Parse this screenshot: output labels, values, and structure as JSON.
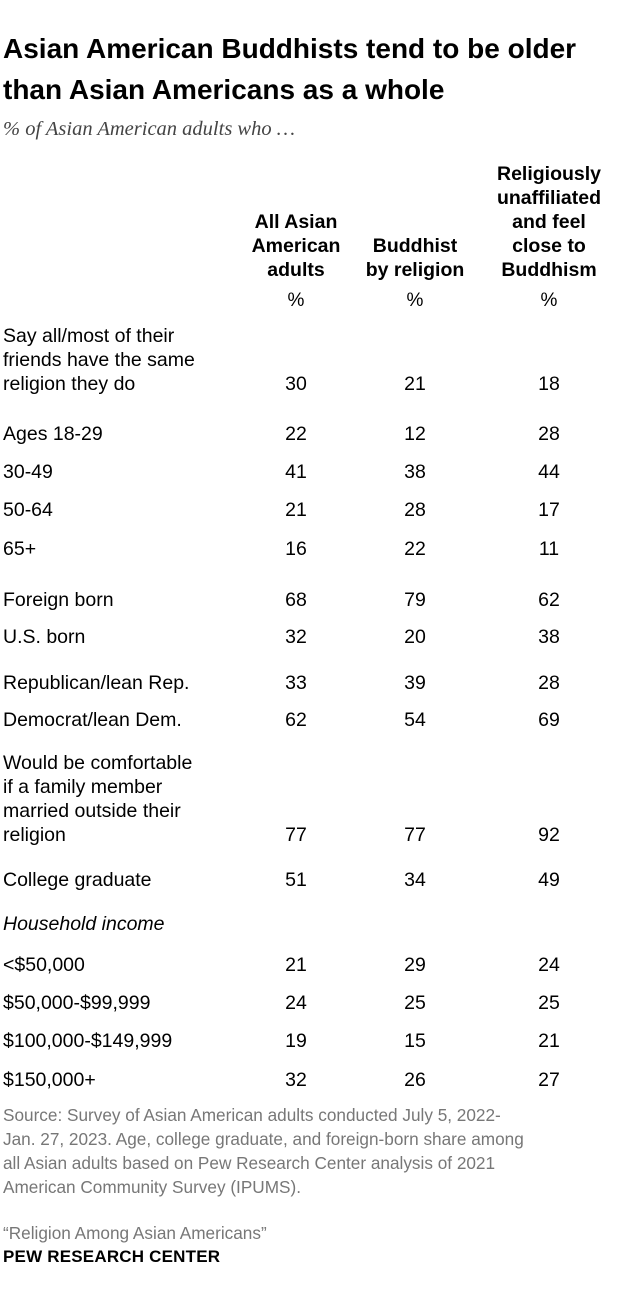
{
  "title": "Asian American Buddhists tend to be older than Asian Americans as a whole",
  "subtitle": "% of Asian American adults who …",
  "chart_data": {
    "type": "table",
    "columns": [
      {
        "name": "All Asian American adults",
        "lines": [
          "All Asian",
          "American",
          "adults"
        ]
      },
      {
        "name": "Buddhist by religion",
        "lines": [
          "Buddhist",
          "by religion"
        ]
      },
      {
        "name": "Religiously unaffiliated and feel close to Buddhism",
        "lines": [
          "Religiously",
          "unaffiliated",
          "and feel",
          "close to",
          "Buddhism"
        ]
      }
    ],
    "unit": "%",
    "section_label": "Household income",
    "rows": [
      {
        "lines": [
          "Say all/most of their",
          "friends have the same",
          "religion they do"
        ],
        "values": [
          30,
          21,
          18
        ]
      },
      {
        "lines": [
          "Ages 18-29"
        ],
        "values": [
          22,
          12,
          28
        ]
      },
      {
        "lines": [
          "30-49"
        ],
        "values": [
          41,
          38,
          44
        ]
      },
      {
        "lines": [
          "50-64"
        ],
        "values": [
          21,
          28,
          17
        ]
      },
      {
        "lines": [
          "65+"
        ],
        "values": [
          16,
          22,
          11
        ]
      },
      {
        "lines": [
          "Foreign born"
        ],
        "values": [
          68,
          79,
          62
        ]
      },
      {
        "lines": [
          "U.S. born"
        ],
        "values": [
          32,
          20,
          38
        ]
      },
      {
        "lines": [
          "Republican/lean Rep."
        ],
        "values": [
          33,
          39,
          28
        ]
      },
      {
        "lines": [
          "Democrat/lean Dem."
        ],
        "values": [
          62,
          54,
          69
        ]
      },
      {
        "lines": [
          "Would be comfortable",
          "if a family member",
          "married outside their",
          "religion"
        ],
        "values": [
          77,
          77,
          92
        ]
      },
      {
        "lines": [
          "College graduate"
        ],
        "values": [
          51,
          34,
          49
        ]
      },
      {
        "lines": [
          "<$50,000"
        ],
        "values": [
          21,
          29,
          24
        ]
      },
      {
        "lines": [
          "$50,000-$99,999"
        ],
        "values": [
          24,
          25,
          25
        ]
      },
      {
        "lines": [
          "$100,000-$149,999"
        ],
        "values": [
          19,
          15,
          21
        ]
      },
      {
        "lines": [
          "$150,000+"
        ],
        "values": [
          32,
          26,
          27
        ]
      }
    ]
  },
  "source_lines": [
    "Source: Survey of Asian American adults conducted July 5, 2022-",
    "Jan. 27, 2023. Age, college graduate, and foreign-born share among",
    "all Asian adults based on Pew Research Center analysis of 2021",
    "American Community Survey (IPUMS)."
  ],
  "report": "“Religion Among Asian Americans”",
  "brand": "PEW RESEARCH CENTER"
}
